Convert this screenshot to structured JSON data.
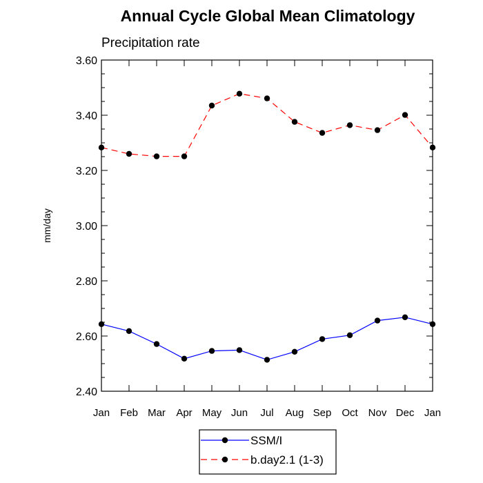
{
  "chart_data": {
    "type": "line",
    "title": "Annual Cycle Global Mean Climatology",
    "subtitle": "Precipitation rate",
    "xlabel": "",
    "ylabel": "mm/day",
    "categories": [
      "Jan",
      "Feb",
      "Mar",
      "Apr",
      "May",
      "Jun",
      "Jul",
      "Aug",
      "Sep",
      "Oct",
      "Nov",
      "Dec",
      "Jan"
    ],
    "ylim": [
      2.4,
      3.6
    ],
    "yticks": [
      "2.40",
      "2.60",
      "2.80",
      "3.00",
      "3.20",
      "3.40",
      "3.60"
    ],
    "grid": false,
    "legend_position": "bottom-center",
    "series": [
      {
        "name": "SSM/I",
        "color": "#0000ff",
        "style": "solid",
        "values": [
          2.643,
          2.618,
          2.571,
          2.518,
          2.546,
          2.549,
          2.514,
          2.543,
          2.589,
          2.603,
          2.656,
          2.668,
          2.643
        ]
      },
      {
        "name": "b.day2.1 (1-3)",
        "color": "#ff0000",
        "style": "dashed",
        "values": [
          3.283,
          3.26,
          3.251,
          3.251,
          3.435,
          3.478,
          3.461,
          3.376,
          3.336,
          3.364,
          3.346,
          3.401,
          3.283
        ]
      }
    ]
  }
}
